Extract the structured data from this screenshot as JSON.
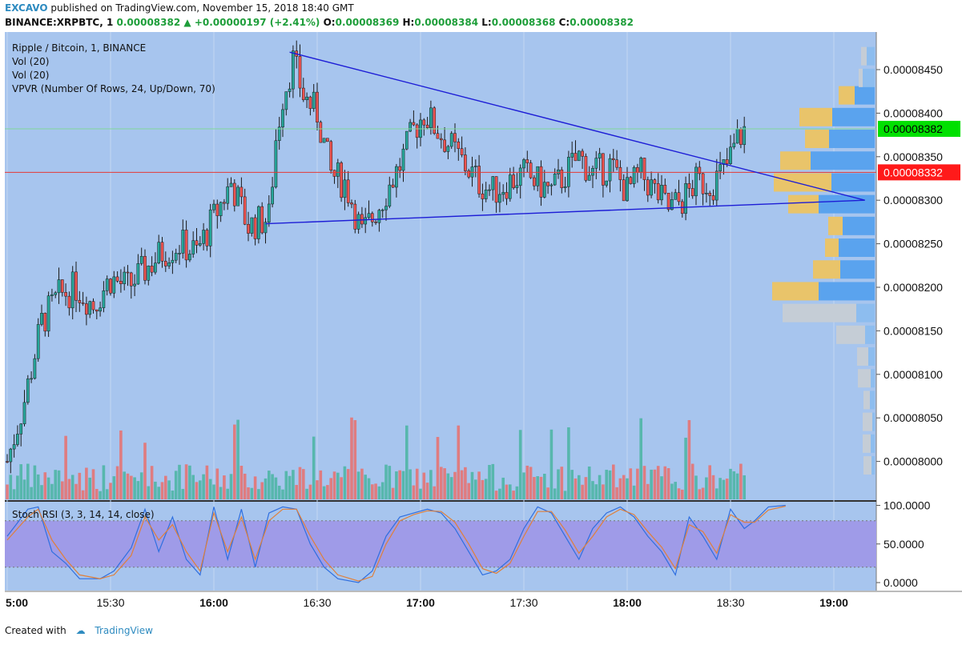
{
  "header": {
    "author": "EXCAVO",
    "published": "published on TradingView.com, November 15, 2018 18:40 GMT",
    "symbol": "BINANCE:XRPBTC, 1",
    "last": "0.00008382",
    "change": "+0.00000197 (+2.41%)",
    "o_label": "O:",
    "o": "0.00008369",
    "h_label": "H:",
    "h": "0.00008384",
    "l_label": "L:",
    "l": "0.00008368",
    "c_label": "C:",
    "c": "0.00008382"
  },
  "legend": [
    "Ripple / Bitcoin, 1, BINANCE",
    "Vol (20)",
    "Vol (20)",
    "VPVR (Number Of Rows, 24, Up/Down, 70)"
  ],
  "footer": {
    "created_with": "Created with",
    "tradingview": "TradingView"
  },
  "colors": {
    "pane_bg": "#a7c5ee",
    "up": "#26a69a",
    "down": "#ef5350",
    "trendline": "#1d1dd6",
    "hline": "#e53935",
    "last_price": "#00e000",
    "rsi_band": "#9f9be8"
  },
  "chart_data": [
    {
      "type": "candlestick",
      "title": "Ripple / Bitcoin, 1, BINANCE",
      "ylim": [
        7.96e-05,
        8.47e-05
      ],
      "y_ticks": [
        "0.00008450",
        "0.00008400",
        "0.00008350",
        "0.00008300",
        "0.00008250",
        "0.00008200",
        "0.00008150",
        "0.00008100",
        "0.00008050",
        "0.00008000"
      ],
      "y_tick_values": [
        8.45e-05,
        8.4e-05,
        8.35e-05,
        8.3e-05,
        8.25e-05,
        8.2e-05,
        8.15e-05,
        8.1e-05,
        8.05e-05,
        8e-05
      ],
      "x_ticks": [
        "5:00",
        "15:30",
        "16:00",
        "16:30",
        "17:00",
        "17:30",
        "18:00",
        "18:30",
        "19:00"
      ],
      "x_tick_minutes": [
        0,
        30,
        60,
        90,
        120,
        150,
        180,
        210,
        240
      ],
      "price_marks": [
        {
          "label": "0.00008382",
          "value": 8.382e-05,
          "color": "#00e000"
        },
        {
          "label": "0.00008332",
          "value": 8.332e-05,
          "color": "#ff1a1a"
        }
      ],
      "horizontal_line": 8.332e-05,
      "trendlines": [
        {
          "from": [
            82,
            8.47e-05
          ],
          "to": [
            249,
            8.3e-05
          ]
        },
        {
          "from": [
            75,
            8.273e-05
          ],
          "to": [
            249,
            8.3e-05
          ]
        }
      ],
      "close_anchors": [
        [
          0,
          8e-05
        ],
        [
          5,
          8.07e-05
        ],
        [
          10,
          8.16e-05
        ],
        [
          15,
          8.19e-05
        ],
        [
          20,
          8.2e-05
        ],
        [
          25,
          8.18e-05
        ],
        [
          30,
          8.21e-05
        ],
        [
          35,
          8.2e-05
        ],
        [
          40,
          8.22e-05
        ],
        [
          45,
          8.24e-05
        ],
        [
          50,
          8.25e-05
        ],
        [
          55,
          8.24e-05
        ],
        [
          60,
          8.28e-05
        ],
        [
          65,
          8.32e-05
        ],
        [
          70,
          8.27e-05
        ],
        [
          76,
          8.28e-05
        ],
        [
          78,
          8.37e-05
        ],
        [
          80,
          8.42e-05
        ],
        [
          83,
          8.46e-05
        ],
        [
          86,
          8.42e-05
        ],
        [
          90,
          8.4e-05
        ],
        [
          94,
          8.33e-05
        ],
        [
          98,
          8.32e-05
        ],
        [
          100,
          8.3e-05
        ],
        [
          103,
          8.26e-05
        ],
        [
          106,
          8.28e-05
        ],
        [
          110,
          8.31e-05
        ],
        [
          114,
          8.34e-05
        ],
        [
          118,
          8.38e-05
        ],
        [
          121,
          8.4e-05
        ],
        [
          125,
          8.38e-05
        ],
        [
          129,
          8.36e-05
        ],
        [
          133,
          8.34e-05
        ],
        [
          137,
          8.32e-05
        ],
        [
          141,
          8.31e-05
        ],
        [
          145,
          8.32e-05
        ],
        [
          150,
          8.33e-05
        ],
        [
          154,
          8.32e-05
        ],
        [
          158,
          8.31e-05
        ],
        [
          162,
          8.33e-05
        ],
        [
          166,
          8.35e-05
        ],
        [
          170,
          8.33e-05
        ],
        [
          175,
          8.34e-05
        ],
        [
          180,
          8.31e-05
        ],
        [
          184,
          8.33e-05
        ],
        [
          188,
          8.31e-05
        ],
        [
          192,
          8.29e-05
        ],
        [
          196,
          8.3e-05
        ],
        [
          200,
          8.32e-05
        ],
        [
          205,
          8.32e-05
        ],
        [
          209,
          8.34e-05
        ],
        [
          212,
          8.37e-05
        ],
        [
          214,
          8.38e-05
        ]
      ],
      "series": [
        {
          "name": "Vol (20)",
          "type": "volume"
        }
      ]
    },
    {
      "type": "bar-horizontal",
      "title": "VPVR (Number Of Rows, 24, Up/Down, 70)",
      "price_rows": [
        8.42e-05,
        8.395e-05,
        8.37e-05,
        8.345e-05,
        8.32e-05,
        8.295e-05,
        8.27e-05,
        8.245e-05,
        8.22e-05,
        8.195e-05,
        8.17e-05,
        8.145e-05,
        8.12e-05,
        8.095e-05,
        8.07e-05,
        8.045e-05,
        8.02e-05,
        7.995e-05,
        8.44e-05,
        8.465e-05
      ],
      "up_volume": [
        25,
        53,
        57,
        80,
        54,
        70,
        40,
        45,
        43,
        70,
        23,
        12,
        8,
        5,
        6,
        3,
        5,
        4,
        15,
        10
      ],
      "down_volume": [
        20,
        41,
        30,
        38,
        72,
        38,
        18,
        17,
        34,
        58,
        92,
        36,
        14,
        16,
        8,
        12,
        10,
        10,
        5,
        7
      ]
    },
    {
      "type": "line",
      "title": "Stoch RSI (3, 3, 14, 14, close)",
      "ylim": [
        -5,
        105
      ],
      "y_ticks": [
        "100.0000",
        "50.0000",
        "0.0000"
      ],
      "y_tick_values": [
        100,
        50,
        0
      ],
      "band": [
        20,
        80
      ],
      "series": [
        {
          "name": "K",
          "color": "#2f6fe0",
          "anchors": [
            [
              0,
              60
            ],
            [
              6,
              95
            ],
            [
              9,
              98
            ],
            [
              13,
              40
            ],
            [
              17,
              25
            ],
            [
              21,
              5
            ],
            [
              27,
              5
            ],
            [
              31,
              15
            ],
            [
              36,
              45
            ],
            [
              40,
              95
            ],
            [
              44,
              40
            ],
            [
              48,
              85
            ],
            [
              52,
              30
            ],
            [
              56,
              10
            ],
            [
              60,
              98
            ],
            [
              64,
              30
            ],
            [
              68,
              95
            ],
            [
              72,
              20
            ],
            [
              76,
              90
            ],
            [
              80,
              98
            ],
            [
              84,
              95
            ],
            [
              88,
              50
            ],
            [
              92,
              20
            ],
            [
              96,
              5
            ],
            [
              102,
              0
            ],
            [
              106,
              15
            ],
            [
              110,
              60
            ],
            [
              114,
              85
            ],
            [
              118,
              90
            ],
            [
              122,
              95
            ],
            [
              126,
              90
            ],
            [
              130,
              70
            ],
            [
              134,
              40
            ],
            [
              138,
              10
            ],
            [
              142,
              15
            ],
            [
              146,
              30
            ],
            [
              150,
              70
            ],
            [
              154,
              98
            ],
            [
              158,
              90
            ],
            [
              162,
              60
            ],
            [
              166,
              30
            ],
            [
              170,
              70
            ],
            [
              174,
              90
            ],
            [
              178,
              98
            ],
            [
              182,
              85
            ],
            [
              186,
              60
            ],
            [
              190,
              40
            ],
            [
              194,
              10
            ],
            [
              198,
              85
            ],
            [
              202,
              60
            ],
            [
              206,
              30
            ],
            [
              210,
              95
            ],
            [
              214,
              70
            ],
            [
              217,
              80
            ],
            [
              221,
              98
            ],
            [
              226,
              100
            ]
          ]
        },
        {
          "name": "D",
          "color": "#e0803a",
          "anchors": [
            [
              0,
              55
            ],
            [
              6,
              85
            ],
            [
              9,
              95
            ],
            [
              13,
              55
            ],
            [
              17,
              30
            ],
            [
              21,
              10
            ],
            [
              27,
              5
            ],
            [
              31,
              10
            ],
            [
              36,
              35
            ],
            [
              40,
              85
            ],
            [
              44,
              55
            ],
            [
              48,
              75
            ],
            [
              52,
              40
            ],
            [
              56,
              15
            ],
            [
              60,
              90
            ],
            [
              64,
              40
            ],
            [
              68,
              85
            ],
            [
              72,
              30
            ],
            [
              76,
              80
            ],
            [
              80,
              95
            ],
            [
              84,
              95
            ],
            [
              88,
              60
            ],
            [
              92,
              30
            ],
            [
              96,
              10
            ],
            [
              102,
              2
            ],
            [
              106,
              8
            ],
            [
              110,
              50
            ],
            [
              114,
              80
            ],
            [
              118,
              88
            ],
            [
              122,
              93
            ],
            [
              126,
              92
            ],
            [
              130,
              78
            ],
            [
              134,
              50
            ],
            [
              138,
              18
            ],
            [
              142,
              12
            ],
            [
              146,
              25
            ],
            [
              150,
              60
            ],
            [
              154,
              92
            ],
            [
              158,
              92
            ],
            [
              162,
              68
            ],
            [
              166,
              38
            ],
            [
              170,
              60
            ],
            [
              174,
              85
            ],
            [
              178,
              95
            ],
            [
              182,
              88
            ],
            [
              186,
              66
            ],
            [
              190,
              46
            ],
            [
              194,
              18
            ],
            [
              198,
              75
            ],
            [
              202,
              66
            ],
            [
              206,
              38
            ],
            [
              210,
              88
            ],
            [
              214,
              78
            ],
            [
              217,
              78
            ],
            [
              221,
              94
            ],
            [
              226,
              99
            ]
          ]
        }
      ]
    }
  ]
}
